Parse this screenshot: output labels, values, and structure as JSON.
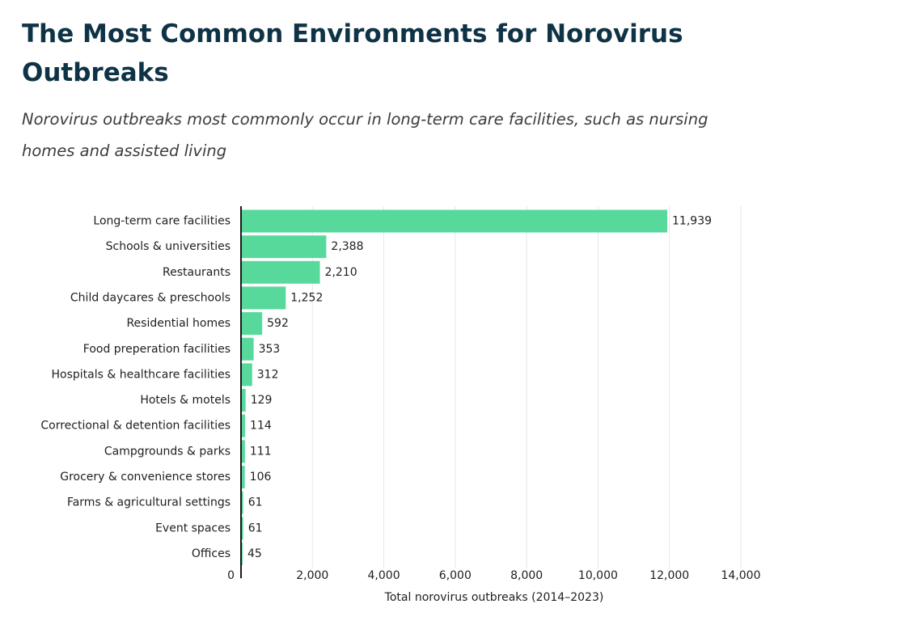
{
  "chart_data": {
    "type": "bar",
    "orientation": "horizontal",
    "title": "The Most Common Environments for Norovirus Outbreaks",
    "subtitle": "Norovirus outbreaks most commonly occur in long-term care facilities, such as nursing homes and assisted living",
    "xlabel": "Total norovirus outbreaks (2014–2023)",
    "ylabel": "",
    "xlim": [
      0,
      14000
    ],
    "xticks": [
      0,
      2000,
      4000,
      6000,
      8000,
      10000,
      12000,
      14000
    ],
    "xtick_labels": [
      "0",
      "2,000",
      "4,000",
      "6,000",
      "8,000",
      "10,000",
      "12,000",
      "14,000"
    ],
    "categories": [
      "Long-term care facilities",
      "Schools & universities",
      "Restaurants",
      "Child daycares & preschools",
      "Residential homes",
      "Food preperation facilities",
      "Hospitals & healthcare facilities",
      "Hotels & motels",
      "Correctional & detention facilities",
      "Campgrounds & parks",
      "Grocery & convenience stores",
      "Farms & agricultural settings",
      "Event spaces",
      "Offices"
    ],
    "values": [
      11939,
      2388,
      2210,
      1252,
      592,
      353,
      312,
      129,
      114,
      111,
      106,
      61,
      61,
      45
    ],
    "value_labels": [
      "11,939",
      "2,388",
      "2,210",
      "1,252",
      "592",
      "353",
      "312",
      "129",
      "114",
      "111",
      "106",
      "61",
      "61",
      "45"
    ],
    "bar_color": "#57d99c",
    "grid": true,
    "legend": "none"
  }
}
